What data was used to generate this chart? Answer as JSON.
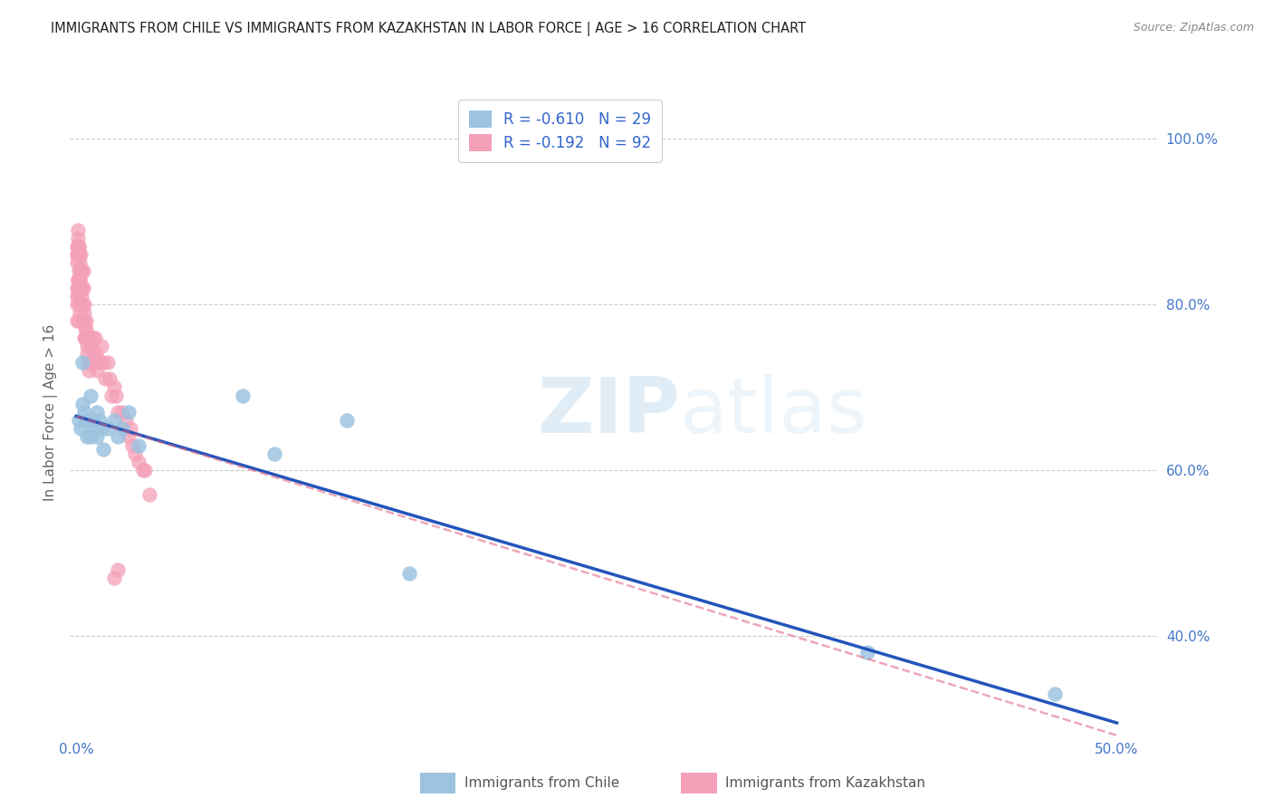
{
  "title": "IMMIGRANTS FROM CHILE VS IMMIGRANTS FROM KAZAKHSTAN IN LABOR FORCE | AGE > 16 CORRELATION CHART",
  "source": "Source: ZipAtlas.com",
  "ylabel": "In Labor Force | Age > 16",
  "xlim": [
    -0.003,
    0.52
  ],
  "ylim": [
    0.28,
    1.06
  ],
  "ytick_positions": [
    0.4,
    0.6,
    0.8,
    1.0
  ],
  "ytick_labels": [
    "40.0%",
    "60.0%",
    "80.0%",
    "100.0%"
  ],
  "xtick_positions": [
    0.0,
    0.1,
    0.2,
    0.3,
    0.4,
    0.5
  ],
  "xtick_labels": [
    "0.0%",
    "",
    "",
    "",
    "",
    "50.0%"
  ],
  "legend_r_chile": "-0.610",
  "legend_n_chile": "29",
  "legend_r_kaz": "-0.192",
  "legend_n_kaz": "92",
  "chile_label": "Immigrants from Chile",
  "kaz_label": "Immigrants from Kazakhstan",
  "watermark_zip": "ZIP",
  "watermark_atlas": "atlas",
  "chile_scatter_color": "#9dc3e0",
  "kaz_scatter_color": "#f4a0b8",
  "chile_line_color": "#2255bb",
  "kaz_line_color": "#e06080",
  "axis_tick_color": "#4477cc",
  "ylabel_color": "#666666",
  "title_color": "#222222",
  "source_color": "#888888",
  "grid_color": "#cccccc",
  "legend_text_color": "#3366cc",
  "bottom_label_color": "#555555",
  "chile_x": [
    0.001,
    0.002,
    0.003,
    0.003,
    0.004,
    0.005,
    0.005,
    0.006,
    0.007,
    0.007,
    0.008,
    0.009,
    0.01,
    0.01,
    0.011,
    0.012,
    0.013,
    0.015,
    0.018,
    0.02,
    0.022,
    0.025,
    0.03,
    0.08,
    0.095,
    0.13,
    0.16,
    0.38,
    0.47
  ],
  "chile_y": [
    0.66,
    0.65,
    0.68,
    0.73,
    0.67,
    0.66,
    0.64,
    0.66,
    0.69,
    0.64,
    0.66,
    0.65,
    0.67,
    0.64,
    0.66,
    0.65,
    0.625,
    0.65,
    0.66,
    0.64,
    0.65,
    0.67,
    0.63,
    0.69,
    0.62,
    0.66,
    0.475,
    0.38,
    0.33
  ],
  "kaz_x": [
    0.0002,
    0.0002,
    0.0003,
    0.0003,
    0.0004,
    0.0004,
    0.0005,
    0.0005,
    0.0006,
    0.0006,
    0.0007,
    0.0007,
    0.0008,
    0.0008,
    0.0009,
    0.0009,
    0.001,
    0.001,
    0.0011,
    0.0011,
    0.0012,
    0.0012,
    0.0013,
    0.0013,
    0.0014,
    0.0015,
    0.0015,
    0.0016,
    0.0017,
    0.0018,
    0.002,
    0.002,
    0.0021,
    0.0022,
    0.0023,
    0.0025,
    0.0026,
    0.0027,
    0.003,
    0.003,
    0.0032,
    0.0033,
    0.0034,
    0.0035,
    0.0036,
    0.0038,
    0.004,
    0.004,
    0.0042,
    0.0044,
    0.0045,
    0.0046,
    0.0048,
    0.005,
    0.005,
    0.0052,
    0.0055,
    0.006,
    0.006,
    0.0065,
    0.007,
    0.007,
    0.0075,
    0.008,
    0.008,
    0.0085,
    0.009,
    0.009,
    0.0095,
    0.01,
    0.011,
    0.012,
    0.013,
    0.014,
    0.015,
    0.016,
    0.017,
    0.018,
    0.019,
    0.02,
    0.022,
    0.024,
    0.025,
    0.026,
    0.027,
    0.028,
    0.03,
    0.032,
    0.033,
    0.035,
    0.018,
    0.02
  ],
  "kaz_y": [
    0.78,
    0.85,
    0.82,
    0.87,
    0.81,
    0.86,
    0.8,
    0.86,
    0.81,
    0.87,
    0.83,
    0.88,
    0.82,
    0.87,
    0.83,
    0.89,
    0.84,
    0.78,
    0.83,
    0.87,
    0.82,
    0.86,
    0.83,
    0.87,
    0.86,
    0.8,
    0.85,
    0.83,
    0.79,
    0.83,
    0.8,
    0.84,
    0.82,
    0.86,
    0.81,
    0.84,
    0.8,
    0.84,
    0.82,
    0.78,
    0.8,
    0.84,
    0.82,
    0.78,
    0.8,
    0.78,
    0.79,
    0.76,
    0.77,
    0.76,
    0.78,
    0.76,
    0.77,
    0.76,
    0.74,
    0.75,
    0.73,
    0.72,
    0.76,
    0.75,
    0.73,
    0.76,
    0.75,
    0.74,
    0.76,
    0.73,
    0.74,
    0.76,
    0.74,
    0.72,
    0.73,
    0.75,
    0.73,
    0.71,
    0.73,
    0.71,
    0.69,
    0.7,
    0.69,
    0.67,
    0.67,
    0.66,
    0.64,
    0.65,
    0.63,
    0.62,
    0.61,
    0.6,
    0.6,
    0.57,
    0.47,
    0.48
  ],
  "kaz_line_x0": 0.0,
  "kaz_line_x1": 0.5,
  "kaz_line_y0": 0.665,
  "kaz_line_y1": 0.28,
  "chile_line_x0": 0.0,
  "chile_line_x1": 0.5,
  "chile_line_y0": 0.665,
  "chile_line_y1": 0.295
}
